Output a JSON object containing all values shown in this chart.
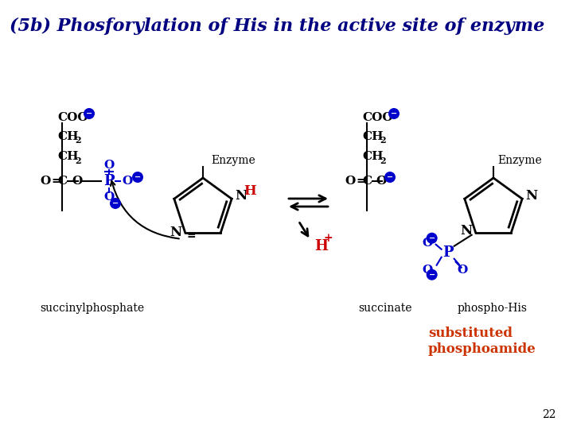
{
  "title": "(5b) Phosforylation of His in the active site of enzyme",
  "title_color": "#000080",
  "title_fontsize": 16,
  "bg_color": "#ffffff",
  "page_number": "22",
  "label_succinylphosphate": "succinylphosphate",
  "label_succinate": "succinate",
  "label_phospho_his": "phospho-His",
  "label_substituted1": "substituted",
  "label_substituted2": "phosphoamide",
  "label_enzyme": "Enzyme",
  "blue": "#0000cc",
  "red": "#cc0000",
  "dark_blue": "#000080",
  "black": "#000000",
  "orange_red": "#cc3300"
}
